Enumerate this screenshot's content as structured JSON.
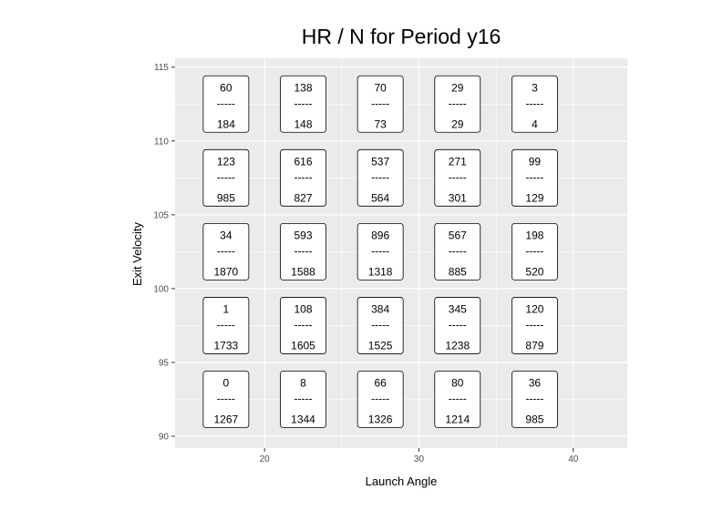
{
  "chart_data": {
    "type": "table",
    "title": "HR / N for Period y16",
    "xlabel": "Launch Angle",
    "ylabel": "Exit Velocity",
    "xlim": [
      14.2,
      43.5
    ],
    "ylim": [
      89.2,
      115.6
    ],
    "x_ticks": [
      "20",
      "30",
      "40"
    ],
    "x_tick_values": [
      20,
      30,
      40
    ],
    "y_ticks": [
      "90",
      "95",
      "100",
      "105",
      "110",
      "115"
    ],
    "y_tick_values": [
      90,
      95,
      100,
      105,
      110,
      115
    ],
    "separator": "-----",
    "grid": true,
    "background": "#ebebeb",
    "cells": [
      {
        "x": 17.5,
        "y": 112.5,
        "hr": "60",
        "n": "184"
      },
      {
        "x": 22.5,
        "y": 112.5,
        "hr": "138",
        "n": "148"
      },
      {
        "x": 27.5,
        "y": 112.5,
        "hr": "70",
        "n": "73"
      },
      {
        "x": 32.5,
        "y": 112.5,
        "hr": "29",
        "n": "29"
      },
      {
        "x": 37.5,
        "y": 112.5,
        "hr": "3",
        "n": "4"
      },
      {
        "x": 17.5,
        "y": 107.5,
        "hr": "123",
        "n": "985"
      },
      {
        "x": 22.5,
        "y": 107.5,
        "hr": "616",
        "n": "827"
      },
      {
        "x": 27.5,
        "y": 107.5,
        "hr": "537",
        "n": "564"
      },
      {
        "x": 32.5,
        "y": 107.5,
        "hr": "271",
        "n": "301"
      },
      {
        "x": 37.5,
        "y": 107.5,
        "hr": "99",
        "n": "129"
      },
      {
        "x": 17.5,
        "y": 102.5,
        "hr": "34",
        "n": "1870"
      },
      {
        "x": 22.5,
        "y": 102.5,
        "hr": "593",
        "n": "1588"
      },
      {
        "x": 27.5,
        "y": 102.5,
        "hr": "896",
        "n": "1318"
      },
      {
        "x": 32.5,
        "y": 102.5,
        "hr": "567",
        "n": "885"
      },
      {
        "x": 37.5,
        "y": 102.5,
        "hr": "198",
        "n": "520"
      },
      {
        "x": 17.5,
        "y": 97.5,
        "hr": "1",
        "n": "1733"
      },
      {
        "x": 22.5,
        "y": 97.5,
        "hr": "108",
        "n": "1605"
      },
      {
        "x": 27.5,
        "y": 97.5,
        "hr": "384",
        "n": "1525"
      },
      {
        "x": 32.5,
        "y": 97.5,
        "hr": "345",
        "n": "1238"
      },
      {
        "x": 37.5,
        "y": 97.5,
        "hr": "120",
        "n": "879"
      },
      {
        "x": 17.5,
        "y": 92.5,
        "hr": "0",
        "n": "1267"
      },
      {
        "x": 22.5,
        "y": 92.5,
        "hr": "8",
        "n": "1344"
      },
      {
        "x": 27.5,
        "y": 92.5,
        "hr": "66",
        "n": "1326"
      },
      {
        "x": 32.5,
        "y": 92.5,
        "hr": "80",
        "n": "1214"
      },
      {
        "x": 37.5,
        "y": 92.5,
        "hr": "36",
        "n": "985"
      }
    ]
  }
}
